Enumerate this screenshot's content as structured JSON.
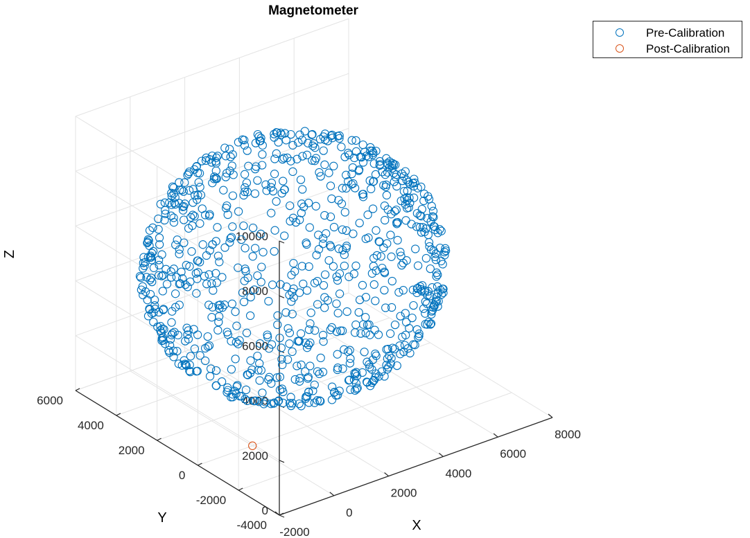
{
  "chart_data": {
    "type": "scatter",
    "projection": "3d",
    "title": "Magnetometer",
    "xlabel": "X",
    "ylabel": "Y",
    "zlabel": "Z",
    "xlim": [
      -2000,
      8000
    ],
    "ylim": [
      -4000,
      6000
    ],
    "zlim": [
      0,
      10000
    ],
    "xticks": [
      "-2000",
      "0",
      "2000",
      "4000",
      "6000",
      "8000"
    ],
    "yticks": [
      "-4000",
      "-2000",
      "0",
      "2000",
      "4000",
      "6000"
    ],
    "zticks": [
      "0",
      "2000",
      "4000",
      "6000",
      "8000",
      "10000"
    ],
    "grid": true,
    "legend_position": "top-right",
    "series": [
      {
        "name": "Pre-Calibration",
        "color": "#0072BD",
        "marker": "open-circle",
        "distribution": "points on the surface of an ellipsoid",
        "center": {
          "x": 3000,
          "y": 2000,
          "z": 4500
        },
        "radii": {
          "x": 4500,
          "y": 4300,
          "z": 4300
        },
        "count": 900
      },
      {
        "name": "Post-Calibration",
        "color": "#D95319",
        "marker": "open-circle",
        "points": [
          {
            "x": 0,
            "y": 0,
            "z": 0
          }
        ]
      }
    ]
  }
}
